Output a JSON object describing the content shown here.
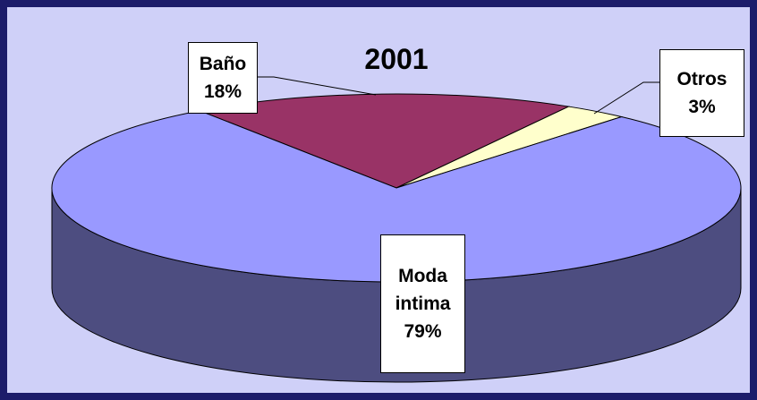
{
  "chart_data": {
    "type": "pie3d",
    "title": "2001",
    "categories": [
      "Baño",
      "Otros",
      "Moda intima"
    ],
    "values": [
      18,
      3,
      79
    ],
    "value_labels": [
      "18%",
      "3%",
      "79%"
    ],
    "colors": [
      "#993366",
      "#ffffcc",
      "#9999ff"
    ]
  }
}
